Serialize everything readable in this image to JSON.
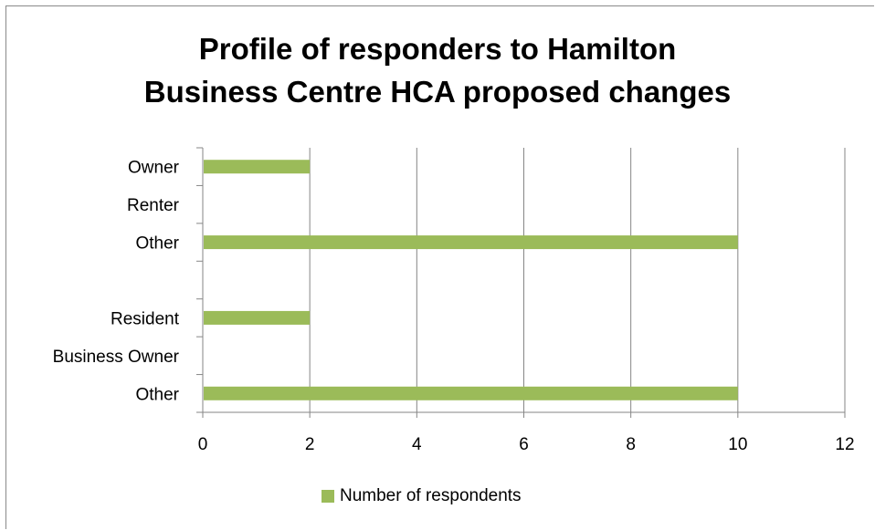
{
  "chart_data": {
    "type": "bar",
    "orientation": "horizontal",
    "title_lines": [
      "Profile of responders to Hamilton",
      "Business Centre HCA proposed changes"
    ],
    "categories": [
      "Owner",
      "Renter",
      "Other",
      "",
      "Resident",
      "Business Owner",
      "Other"
    ],
    "series": [
      {
        "name": "Number of respondents",
        "values": [
          2,
          0,
          10,
          0,
          2,
          0,
          10
        ],
        "color": "#9bbb59"
      }
    ],
    "xlim": [
      0,
      12
    ],
    "xticks": [
      "0",
      "2",
      "4",
      "6",
      "8",
      "10",
      "12"
    ],
    "grid": "vertical",
    "legend": "bottom"
  }
}
